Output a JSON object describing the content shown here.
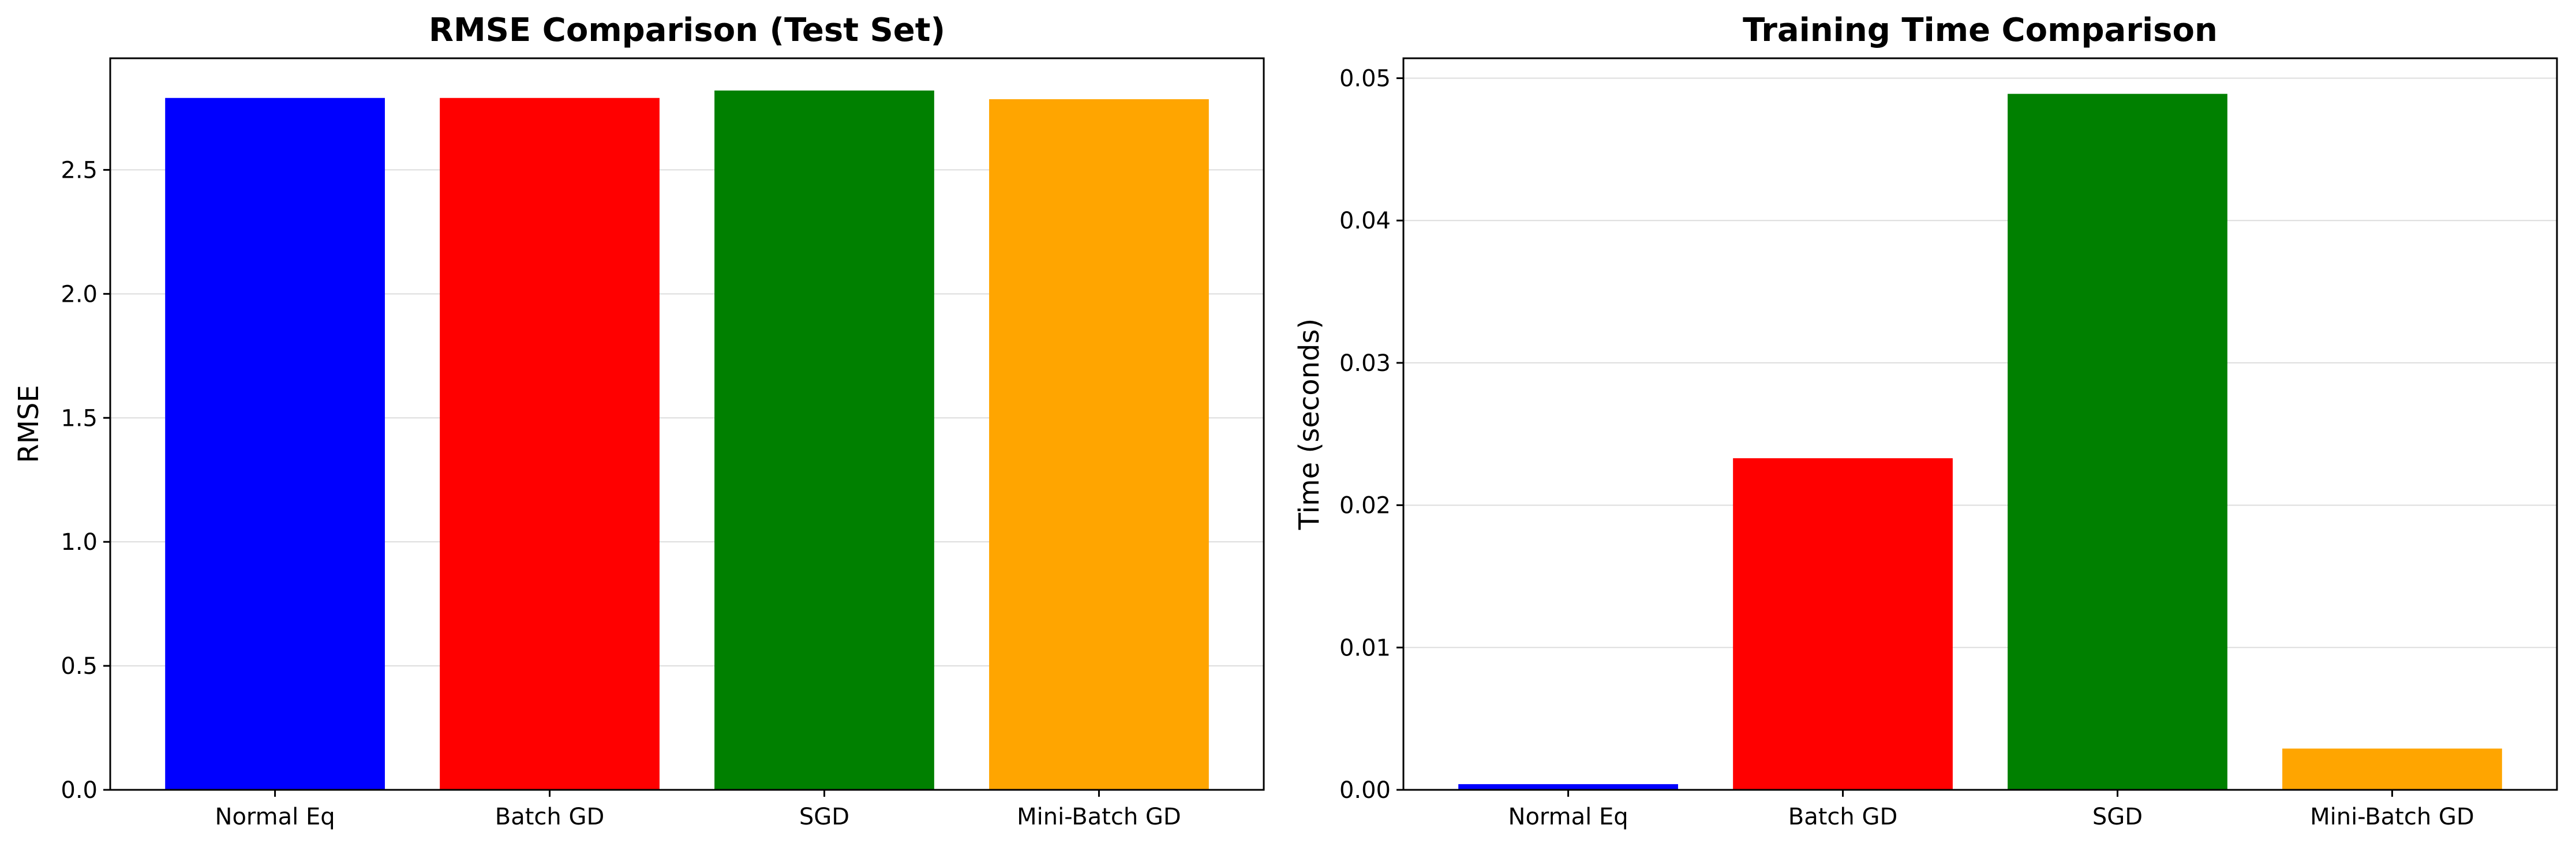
{
  "chart_data": [
    {
      "type": "bar",
      "title": "RMSE Comparison (Test Set)",
      "xlabel": "",
      "ylabel": "RMSE",
      "categories": [
        "Normal Eq",
        "Batch GD",
        "SGD",
        "Mini-Batch GD"
      ],
      "values": [
        2.79,
        2.79,
        2.82,
        2.785
      ],
      "colors": [
        "#0000ff",
        "#ff0000",
        "#008000",
        "#ffa500"
      ],
      "ylim": [
        0,
        2.95
      ],
      "yticks": [
        0.0,
        0.5,
        1.0,
        1.5,
        2.0,
        2.5
      ],
      "ytick_labels": [
        "0.0",
        "0.5",
        "1.0",
        "1.5",
        "2.0",
        "2.5"
      ],
      "grid": true,
      "grid_axis": "y"
    },
    {
      "type": "bar",
      "title": "Training Time Comparison",
      "xlabel": "",
      "ylabel": "Time (seconds)",
      "categories": [
        "Normal Eq",
        "Batch GD",
        "SGD",
        "Mini-Batch GD"
      ],
      "values": [
        0.0004,
        0.0233,
        0.0489,
        0.0029
      ],
      "colors": [
        "#0000ff",
        "#ff0000",
        "#008000",
        "#ffa500"
      ],
      "ylim": [
        0,
        0.0514
      ],
      "yticks": [
        0.0,
        0.01,
        0.02,
        0.03,
        0.04,
        0.05
      ],
      "ytick_labels": [
        "0.00",
        "0.01",
        "0.02",
        "0.03",
        "0.04",
        "0.05"
      ],
      "grid": true,
      "grid_axis": "y"
    }
  ]
}
